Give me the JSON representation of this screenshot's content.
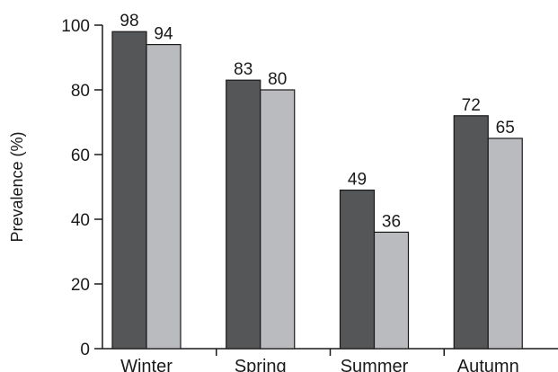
{
  "chart_data": {
    "type": "bar",
    "title": "",
    "xlabel": "",
    "ylabel": "Prevalence (%)",
    "ylim": [
      0,
      100
    ],
    "yticks": [
      0,
      20,
      40,
      60,
      80,
      100
    ],
    "categories": [
      "Winter",
      "Spring",
      "Summer",
      "Autumn"
    ],
    "series": [
      {
        "values": [
          98,
          83,
          49,
          72
        ],
        "color": "#555658"
      },
      {
        "values": [
          94,
          80,
          36,
          65
        ],
        "color": "#babbbe"
      }
    ],
    "data_labels": true,
    "grid": false,
    "legend": "none"
  }
}
